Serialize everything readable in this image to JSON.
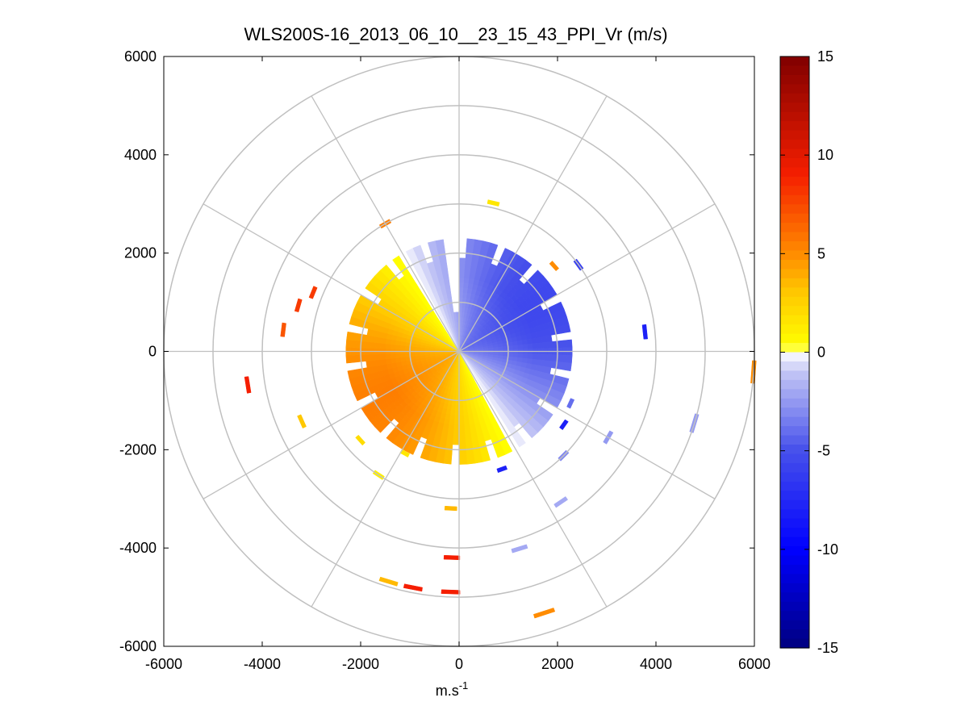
{
  "chart_data": {
    "type": "polar-ppi",
    "title": "WLS200S-16_2013_06_10__23_15_43_PPI_Vr (m/s)",
    "xlabel": "m.s",
    "xlabel_superscript": "-1",
    "ylabel": "",
    "xlim": [
      -6000,
      6000
    ],
    "ylim": [
      -6000,
      6000
    ],
    "x_ticks": [
      "-6000",
      "-4000",
      "-2000",
      "0",
      "2000",
      "4000",
      "6000"
    ],
    "y_ticks": [
      "6000",
      "4000",
      "2000",
      "0",
      "-2000",
      "-4000",
      "-6000"
    ],
    "grid": {
      "range_rings_m": [
        1000,
        2000,
        3000,
        4000,
        5000,
        6000
      ],
      "spoke_angles_deg": [
        0,
        30,
        60,
        90,
        120,
        150,
        180,
        210,
        240,
        270,
        300,
        330
      ],
      "color": "#c0c0c0"
    },
    "colorbar": {
      "min": -15,
      "max": 15,
      "ticks": [
        "15",
        "10",
        "5",
        "0",
        "-5",
        "-10",
        "-15"
      ],
      "colormap": "blue-white-yellow-red"
    },
    "radial_velocity_field": {
      "core_radius_m": 2300,
      "value_note": "Vr = A·sin(bearing - 150°), approaching (negative) to the north-east, receding (positive) to the south-west",
      "amplitude_ms": 5.5,
      "zero_line_bearing_deg": 150
    },
    "scattered_returns": [
      {
        "range_m": 3000,
        "bearing_deg": 330,
        "value": 5.5
      },
      {
        "range_m": 3100,
        "bearing_deg": 13,
        "value": 1.5
      },
      {
        "range_m": 2600,
        "bearing_deg": 48,
        "value": 5
      },
      {
        "range_m": 3000,
        "bearing_deg": 54,
        "value": -6
      },
      {
        "range_m": 3400,
        "bearing_deg": 286,
        "value": 8
      },
      {
        "range_m": 3200,
        "bearing_deg": 292,
        "value": 8
      },
      {
        "range_m": 3600,
        "bearing_deg": 277,
        "value": 7
      },
      {
        "range_m": 4350,
        "bearing_deg": 261,
        "value": 9
      },
      {
        "range_m": 3500,
        "bearing_deg": 246,
        "value": 3
      },
      {
        "range_m": 3800,
        "bearing_deg": 84,
        "value": -8
      },
      {
        "range_m": 6000,
        "bearing_deg": 94,
        "value": 5
      },
      {
        "range_m": 5000,
        "bearing_deg": 107,
        "value": -2.5
      },
      {
        "range_m": 3000,
        "bearing_deg": 135,
        "value": -3
      },
      {
        "range_m": 3500,
        "bearing_deg": 120,
        "value": -2.5
      },
      {
        "range_m": 3700,
        "bearing_deg": 146,
        "value": -2
      },
      {
        "range_m": 4200,
        "bearing_deg": 163,
        "value": -2
      },
      {
        "range_m": 5600,
        "bearing_deg": 162,
        "value": 5
      },
      {
        "range_m": 4200,
        "bearing_deg": 182,
        "value": 9
      },
      {
        "range_m": 4900,
        "bearing_deg": 182,
        "value": 9
      },
      {
        "range_m": 4900,
        "bearing_deg": 191,
        "value": 9
      },
      {
        "range_m": 4900,
        "bearing_deg": 197,
        "value": 3.5
      },
      {
        "range_m": 3200,
        "bearing_deg": 183,
        "value": 3.5
      },
      {
        "range_m": 3000,
        "bearing_deg": 213,
        "value": 1
      },
      {
        "range_m": 2700,
        "bearing_deg": 228,
        "value": 2
      },
      {
        "range_m": 2350,
        "bearing_deg": 208,
        "value": 1.5
      },
      {
        "range_m": 2550,
        "bearing_deg": 160,
        "value": -8
      },
      {
        "range_m": 2600,
        "bearing_deg": 125,
        "value": -8
      },
      {
        "range_m": 2500,
        "bearing_deg": 115,
        "value": -4
      }
    ]
  }
}
